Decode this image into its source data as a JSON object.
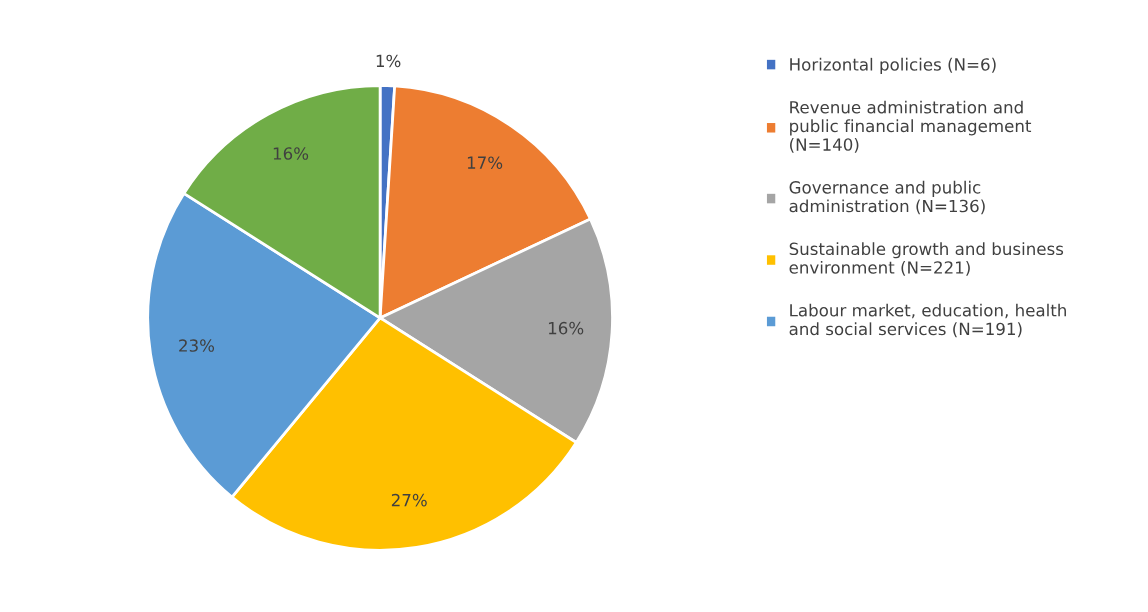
{
  "chart_data": {
    "type": "pie",
    "categories": [
      "Horizontal policies (N=6)",
      "Revenue administration and\npublic financial management\n(N=140)",
      "Governance and public\nadministration (N=136)",
      "Sustainable growth and business\nenvironment (N=221)",
      "Labour market, education, health\nand social services (N=191)",
      null
    ],
    "values": [
      1,
      17,
      16,
      27,
      23,
      16
    ],
    "colors": [
      "#4472c4",
      "#ed7d31",
      "#a5a5a5",
      "#ffc000",
      "#5b9bd5",
      "#70ad47"
    ],
    "value_labels": [
      "1%",
      "17%",
      "16%",
      "27%",
      "23%",
      "16%"
    ],
    "legend": "right"
  }
}
